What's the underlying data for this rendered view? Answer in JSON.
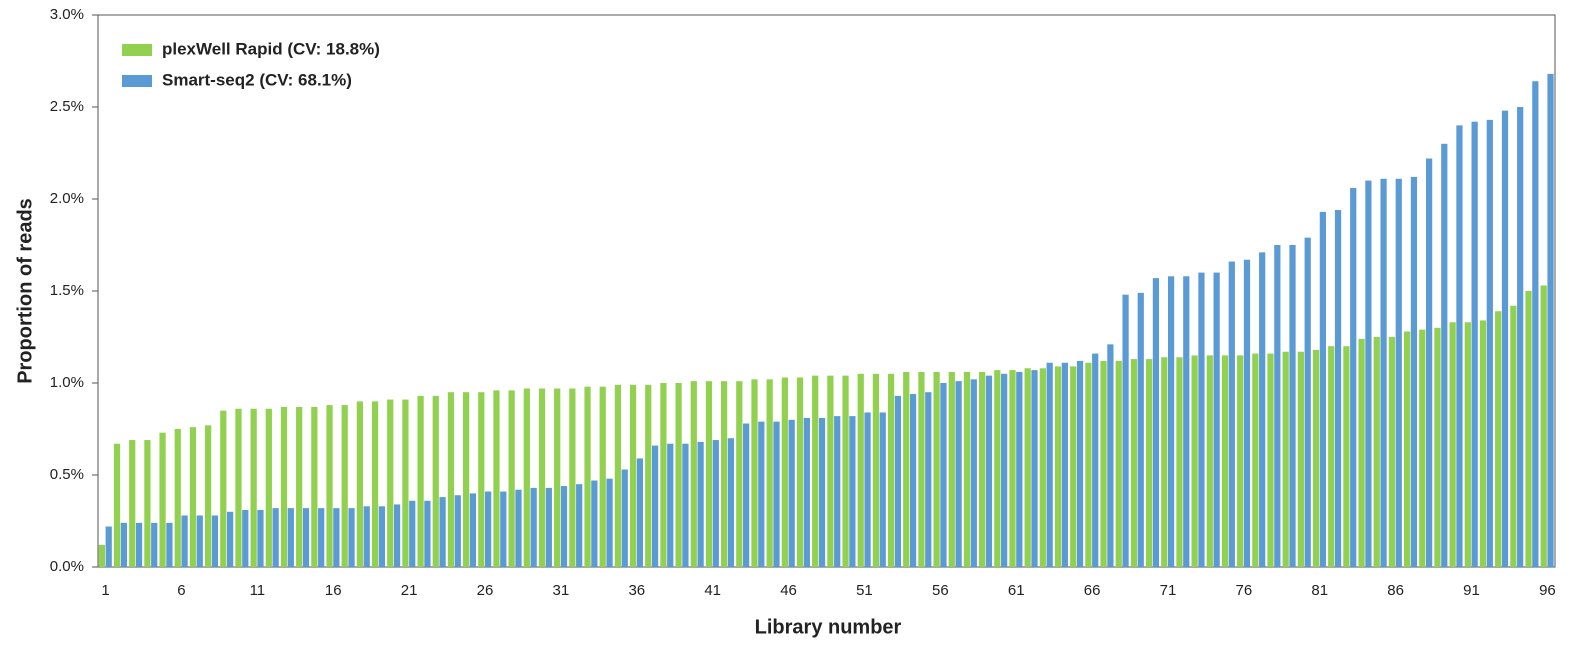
{
  "chart_data": {
    "type": "bar",
    "x_label": "Library number",
    "y_label": "Proportion of reads",
    "categories": [
      "1",
      null,
      null,
      null,
      null,
      "6",
      null,
      null,
      null,
      null,
      "11",
      null,
      null,
      null,
      null,
      "16",
      null,
      null,
      null,
      null,
      "21",
      null,
      null,
      null,
      null,
      "26",
      null,
      null,
      null,
      null,
      "31",
      null,
      null,
      null,
      null,
      "36",
      null,
      null,
      null,
      null,
      "41",
      null,
      null,
      null,
      null,
      "46",
      null,
      null,
      null,
      null,
      "51",
      null,
      null,
      null,
      null,
      "56",
      null,
      null,
      null,
      null,
      "61",
      null,
      null,
      null,
      null,
      "66",
      null,
      null,
      null,
      null,
      "71",
      null,
      null,
      null,
      null,
      "76",
      null,
      null,
      null,
      null,
      "81",
      null,
      null,
      null,
      null,
      "86",
      null,
      null,
      null,
      null,
      "91",
      null,
      null,
      null,
      null,
      "96"
    ],
    "series": [
      {
        "name": "plexWell Rapid (CV: 18.8%)",
        "color": "#92d050",
        "values": [
          0.12,
          0.67,
          0.69,
          0.69,
          0.73,
          0.75,
          0.76,
          0.77,
          0.85,
          0.86,
          0.86,
          0.86,
          0.87,
          0.87,
          0.87,
          0.88,
          0.88,
          0.9,
          0.9,
          0.91,
          0.91,
          0.93,
          0.93,
          0.95,
          0.95,
          0.95,
          0.96,
          0.96,
          0.97,
          0.97,
          0.97,
          0.97,
          0.98,
          0.98,
          0.99,
          0.99,
          0.99,
          1.0,
          1.0,
          1.01,
          1.01,
          1.01,
          1.01,
          1.02,
          1.02,
          1.03,
          1.03,
          1.04,
          1.04,
          1.04,
          1.05,
          1.05,
          1.05,
          1.06,
          1.06,
          1.06,
          1.06,
          1.06,
          1.06,
          1.07,
          1.07,
          1.08,
          1.08,
          1.09,
          1.09,
          1.11,
          1.12,
          1.12,
          1.13,
          1.13,
          1.14,
          1.14,
          1.15,
          1.15,
          1.15,
          1.15,
          1.16,
          1.16,
          1.17,
          1.17,
          1.18,
          1.2,
          1.2,
          1.24,
          1.25,
          1.25,
          1.28,
          1.29,
          1.3,
          1.33,
          1.33,
          1.34,
          1.39,
          1.42,
          1.5,
          1.53
        ]
      },
      {
        "name": "Smart-seq2 (CV: 68.1%)",
        "color": "#5b9bd5",
        "values": [
          0.22,
          0.24,
          0.24,
          0.24,
          0.24,
          0.28,
          0.28,
          0.28,
          0.3,
          0.31,
          0.31,
          0.32,
          0.32,
          0.32,
          0.32,
          0.32,
          0.32,
          0.33,
          0.33,
          0.34,
          0.36,
          0.36,
          0.38,
          0.39,
          0.4,
          0.41,
          0.41,
          0.42,
          0.43,
          0.43,
          0.44,
          0.45,
          0.47,
          0.48,
          0.53,
          0.59,
          0.66,
          0.67,
          0.67,
          0.68,
          0.69,
          0.7,
          0.78,
          0.79,
          0.79,
          0.8,
          0.81,
          0.81,
          0.82,
          0.82,
          0.84,
          0.84,
          0.93,
          0.94,
          0.95,
          1.0,
          1.01,
          1.02,
          1.04,
          1.05,
          1.06,
          1.07,
          1.11,
          1.11,
          1.12,
          1.16,
          1.21,
          1.48,
          1.49,
          1.57,
          1.58,
          1.58,
          1.6,
          1.6,
          1.66,
          1.67,
          1.71,
          1.75,
          1.75,
          1.79,
          1.93,
          1.94,
          2.06,
          2.1,
          2.11,
          2.11,
          2.12,
          2.22,
          2.3,
          2.4,
          2.42,
          2.43,
          2.48,
          2.5,
          2.64,
          2.68
        ]
      }
    ],
    "ylim": [
      0,
      3
    ],
    "yticks": [
      {
        "value": 0,
        "label": "0.0%"
      },
      {
        "value": 0.5,
        "label": "0.5%"
      },
      {
        "value": 1,
        "label": "1.0%"
      },
      {
        "value": 1.5,
        "label": "1.5%"
      },
      {
        "value": 2,
        "label": "2.0%"
      },
      {
        "value": 2.5,
        "label": "2.5%"
      },
      {
        "value": 3,
        "label": "3.0%"
      }
    ],
    "legend": "top-left"
  }
}
